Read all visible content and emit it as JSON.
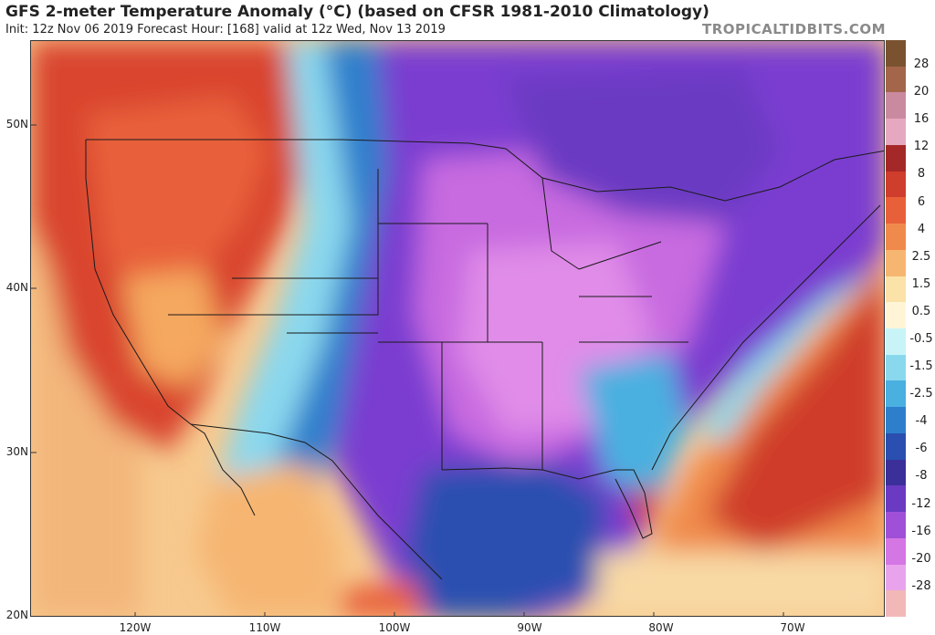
{
  "header": {
    "title": "GFS 2-meter Temperature Anomaly (°C) (based on CFSR 1981-2010 Climatology)",
    "subtitle": "Init: 12z Nov 06 2019   Forecast Hour: [168]   valid at 12z Wed, Nov 13 2019",
    "source": "TROPICALTIDBITS.COM"
  },
  "axes": {
    "lat_labels": [
      "50N",
      "40N",
      "30N",
      "20N"
    ],
    "lon_labels": [
      "120W",
      "110W",
      "100W",
      "90W",
      "80W",
      "70W"
    ]
  },
  "colorbar": {
    "labels": [
      "28",
      "20",
      "16",
      "12",
      "8",
      "6",
      "4",
      "2.5",
      "1.5",
      "0.5",
      "-0.5",
      "-1.5",
      "-2.5",
      "-4",
      "-6",
      "-8",
      "-12",
      "-16",
      "-20",
      "-28"
    ],
    "colors": [
      "#7a5230",
      "#a3664a",
      "#c98aa0",
      "#e6a8c0",
      "#a52828",
      "#cf3d2c",
      "#e8603a",
      "#f08a4c",
      "#f6b672",
      "#fbe2a8",
      "#fff5d6",
      "#c8f4f8",
      "#8ad8ee",
      "#4ab0e0",
      "#2d7fcc",
      "#2a4fb0",
      "#3b2f9a",
      "#6a3ac2",
      "#a050d8",
      "#d476e4",
      "#e9a3ec",
      "#f2b8b8"
    ]
  }
}
